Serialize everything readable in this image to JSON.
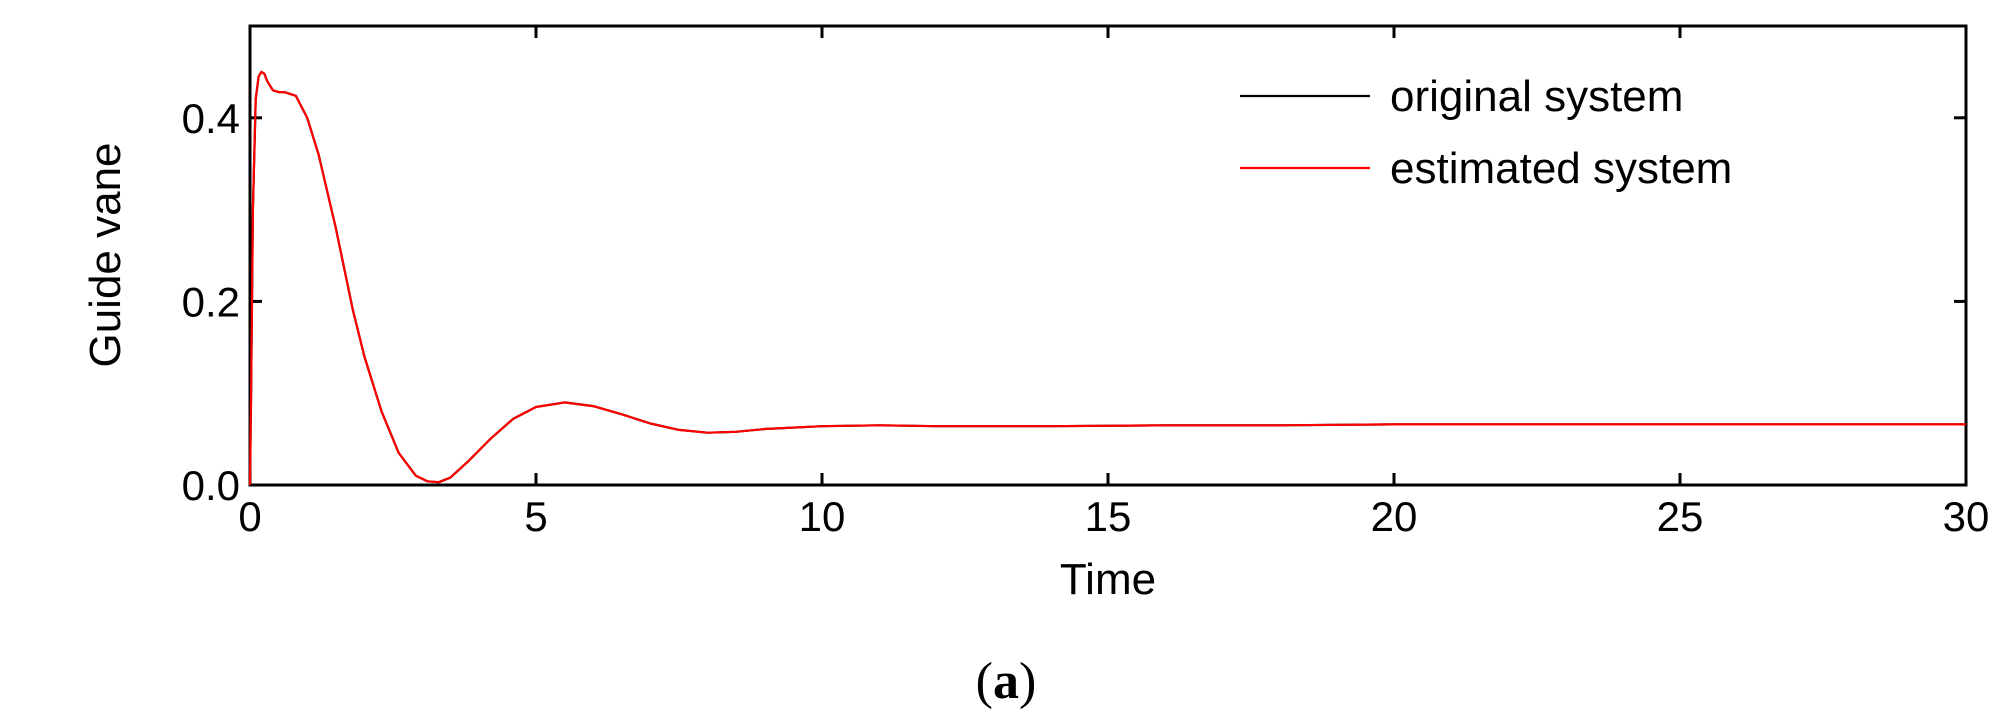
{
  "chart_data": {
    "type": "line",
    "title": "",
    "xlabel": "Time",
    "ylabel": "Guide vane",
    "xlim": [
      0,
      30
    ],
    "ylim": [
      0,
      0.5
    ],
    "xticks": [
      0,
      5,
      10,
      15,
      20,
      25,
      30
    ],
    "yticks": [
      0.0,
      0.2,
      0.4
    ],
    "xtick_labels": [
      "0",
      "5",
      "10",
      "15",
      "20",
      "25",
      "30"
    ],
    "ytick_labels": [
      "0.0",
      "0.2",
      "0.4"
    ],
    "grid": false,
    "legend_position": "top-right",
    "series": [
      {
        "name": "original system",
        "color": "#000000",
        "x": [
          0,
          0.02,
          0.05,
          0.1,
          0.15,
          0.2,
          0.25,
          0.3,
          0.4,
          0.5,
          0.6,
          0.8,
          1.0,
          1.2,
          1.5,
          1.8,
          2.0,
          2.3,
          2.6,
          2.9,
          3.1,
          3.3,
          3.5,
          3.8,
          4.2,
          4.6,
          5.0,
          5.5,
          6.0,
          6.5,
          7.0,
          7.5,
          8.0,
          8.5,
          9.0,
          10.0,
          11.0,
          12.0,
          14.0,
          16.0,
          18.0,
          20.0,
          22.0,
          25.0,
          28.0,
          30.0
        ],
        "y": [
          0,
          0.1,
          0.3,
          0.42,
          0.445,
          0.45,
          0.448,
          0.44,
          0.43,
          0.428,
          0.428,
          0.424,
          0.4,
          0.36,
          0.28,
          0.19,
          0.14,
          0.08,
          0.035,
          0.01,
          0.004,
          0.003,
          0.008,
          0.025,
          0.05,
          0.072,
          0.085,
          0.09,
          0.086,
          0.077,
          0.067,
          0.06,
          0.057,
          0.058,
          0.061,
          0.064,
          0.065,
          0.064,
          0.064,
          0.065,
          0.065,
          0.066,
          0.066,
          0.066,
          0.066,
          0.066
        ]
      },
      {
        "name": "estimated system",
        "color": "#ff0000",
        "x": [
          0,
          0.02,
          0.05,
          0.1,
          0.15,
          0.2,
          0.25,
          0.3,
          0.4,
          0.5,
          0.6,
          0.8,
          1.0,
          1.2,
          1.5,
          1.8,
          2.0,
          2.3,
          2.6,
          2.9,
          3.1,
          3.3,
          3.5,
          3.8,
          4.2,
          4.6,
          5.0,
          5.5,
          6.0,
          6.5,
          7.0,
          7.5,
          8.0,
          8.5,
          9.0,
          10.0,
          11.0,
          12.0,
          14.0,
          16.0,
          18.0,
          20.0,
          22.0,
          25.0,
          28.0,
          30.0
        ],
        "y": [
          0,
          0.1,
          0.3,
          0.42,
          0.445,
          0.45,
          0.448,
          0.44,
          0.43,
          0.428,
          0.428,
          0.424,
          0.4,
          0.36,
          0.28,
          0.19,
          0.14,
          0.08,
          0.035,
          0.01,
          0.004,
          0.003,
          0.008,
          0.025,
          0.05,
          0.072,
          0.085,
          0.09,
          0.086,
          0.077,
          0.067,
          0.06,
          0.057,
          0.058,
          0.061,
          0.064,
          0.065,
          0.064,
          0.064,
          0.065,
          0.065,
          0.066,
          0.066,
          0.066,
          0.066,
          0.066
        ]
      }
    ]
  },
  "caption": {
    "open": "(",
    "letter": "a",
    "close": ")"
  }
}
